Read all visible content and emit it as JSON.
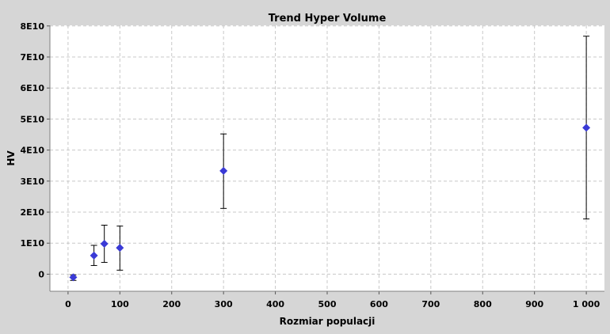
{
  "chart_data": {
    "type": "scatter",
    "title": "Trend Hyper Volume",
    "xlabel": "Rozmiar populacji",
    "ylabel": "HV",
    "xlim": [
      -35,
      1035
    ],
    "ylim": [
      -5500000000.0,
      80200000000.0
    ],
    "x_ticks": [
      0,
      100,
      200,
      300,
      400,
      500,
      600,
      700,
      800,
      900,
      1000
    ],
    "x_tick_labels": [
      "0",
      "100",
      "200",
      "300",
      "400",
      "500",
      "600",
      "700",
      "800",
      "900",
      "1 000"
    ],
    "y_ticks": [
      0,
      10000000000.0,
      20000000000.0,
      30000000000.0,
      40000000000.0,
      50000000000.0,
      60000000000.0,
      70000000000.0,
      80000000000.0
    ],
    "y_tick_labels": [
      "0",
      "1E10",
      "2E10",
      "3E10",
      "4E10",
      "5E10",
      "6E10",
      "7E10",
      "8E10"
    ],
    "grid": true,
    "marker": "diamond",
    "colors": {
      "point": "#3a3ad6",
      "error_bar": "#000000",
      "plot_bg": "#ffffff",
      "grid": "#c8c8c8"
    },
    "points": [
      {
        "x": 10,
        "y": -1000000000.0,
        "ylow": -2000000000.0,
        "yhigh": -200000000.0
      },
      {
        "x": 50,
        "y": 6000000000.0,
        "ylow": 2800000000.0,
        "yhigh": 9300000000.0
      },
      {
        "x": 70,
        "y": 9800000000.0,
        "ylow": 3800000000.0,
        "yhigh": 15800000000.0
      },
      {
        "x": 100,
        "y": 8500000000.0,
        "ylow": 1300000000.0,
        "yhigh": 15500000000.0
      },
      {
        "x": 300,
        "y": 33300000000.0,
        "ylow": 21200000000.0,
        "yhigh": 45200000000.0
      },
      {
        "x": 1000,
        "y": 47200000000.0,
        "ylow": 17800000000.0,
        "yhigh": 76700000000.0
      }
    ]
  }
}
